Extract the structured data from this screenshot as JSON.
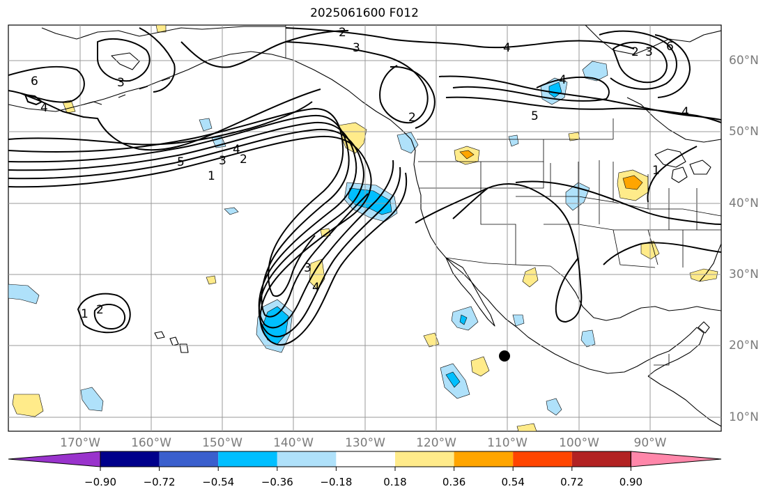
{
  "title": "2025061600 F012",
  "lat_labels": [
    "60°N",
    "50°N",
    "40°N",
    "30°N",
    "20°N",
    "10°N"
  ],
  "lon_labels": [
    "170°W",
    "160°W",
    "150°W",
    "140°W",
    "130°W",
    "120°W",
    "110°W",
    "100°W",
    "90°W"
  ],
  "colorbar": {
    "ticks": [
      "−0.90",
      "−0.72",
      "−0.54",
      "−0.36",
      "−0.18",
      "0.18",
      "0.36",
      "0.54",
      "0.72",
      "0.90"
    ],
    "colors": [
      "#9933cc",
      "#00008b",
      "#3a5fcd",
      "#00bfff",
      "#afe1fa",
      "#ffffff",
      "#ffeb8a",
      "#ffa500",
      "#ff4500",
      "#b22222",
      "#ff87aa"
    ]
  },
  "contour_labels": [
    "1",
    "2",
    "3",
    "4",
    "5",
    "6"
  ],
  "colors": {
    "land_outline": "#000000",
    "grid": "#999999",
    "contour": "#000000"
  }
}
